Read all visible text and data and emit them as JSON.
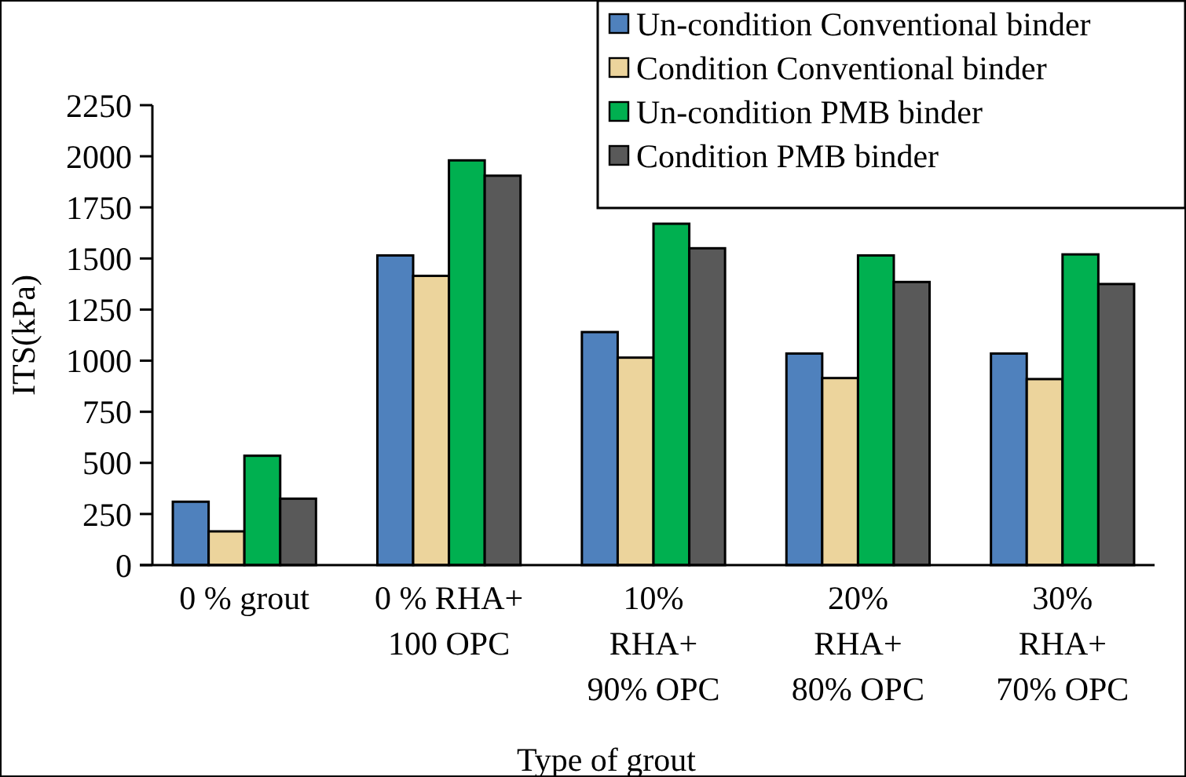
{
  "chart_data": {
    "type": "bar",
    "xlabel": "Type of grout",
    "ylabel": "ITS(kPa)",
    "categories": [
      "0 % grout",
      "0 % RHA+\n100 OPC",
      "10%\nRHA+\n90% OPC",
      "20%\nRHA+\n80% OPC",
      "30%\nRHA+\n70% OPC"
    ],
    "series": [
      {
        "name": "Un-condition Conventional binder",
        "color": "#4f81bd",
        "values": [
          310,
          1515,
          1140,
          1035,
          1035
        ]
      },
      {
        "name": "Condition Conventional binder",
        "color": "#ecd49c",
        "values": [
          165,
          1415,
          1015,
          915,
          910
        ]
      },
      {
        "name": "Un-condition PMB binder",
        "color": "#00b050",
        "values": [
          535,
          1980,
          1670,
          1515,
          1520
        ]
      },
      {
        "name": "Condition PMB binder",
        "color": "#595959",
        "values": [
          325,
          1905,
          1550,
          1385,
          1375
        ]
      }
    ],
    "ylim": [
      0,
      2250
    ],
    "yticks": [
      0,
      250,
      500,
      750,
      1000,
      1250,
      1500,
      1750,
      2000,
      2250
    ],
    "grid": false,
    "legend": "top right"
  }
}
